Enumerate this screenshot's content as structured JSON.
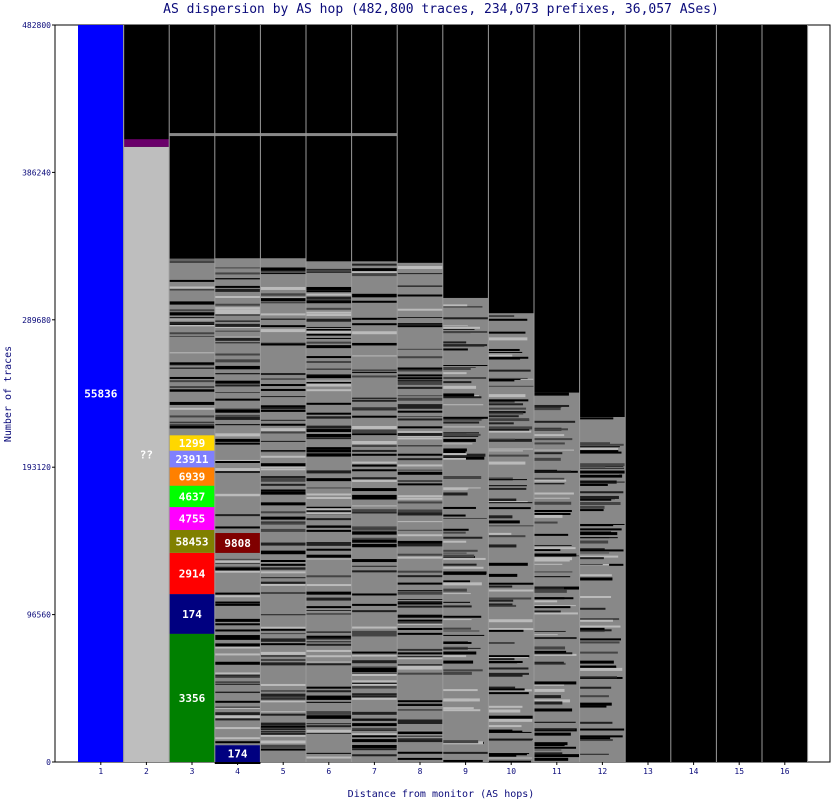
{
  "chart_data": {
    "type": "bar",
    "title": "AS dispersion by AS hop (482,800 traces, 234,073 prefixes, 36,057 ASes)",
    "xlabel": "Distance from monitor (AS hops)",
    "ylabel": "Number of traces",
    "ylim": [
      0,
      482800
    ],
    "y_ticks": [
      "0",
      "96560",
      "193120",
      "289680",
      "386240",
      "482800"
    ],
    "categories": [
      "1",
      "2",
      "3",
      "4",
      "5",
      "6",
      "7",
      "8",
      "9",
      "10",
      "11",
      "12",
      "13",
      "14",
      "15",
      "16"
    ],
    "gray_top": [
      0,
      0,
      330000,
      330000,
      330000,
      328000,
      328000,
      327000,
      304000,
      294000,
      242000,
      226000,
      0,
      0,
      0,
      0
    ],
    "named_segments": [
      {
        "hop": 1,
        "label": "55836",
        "from": 0,
        "to": 482800,
        "color": "#0000ff",
        "text_color": "#ffffff"
      },
      {
        "hop": 2,
        "label": "??",
        "from": 0,
        "to": 403000,
        "color": "#bebebe",
        "text_color": "#ffffff"
      },
      {
        "hop": 2,
        "label": "",
        "from": 403000,
        "to": 408000,
        "color": "#6a006a",
        "text_color": "#ffffff"
      },
      {
        "hop": 3,
        "label": "3356",
        "from": 0,
        "to": 84000,
        "color": "#008000",
        "text_color": "#ffffff"
      },
      {
        "hop": 3,
        "label": "174",
        "from": 84000,
        "to": 110000,
        "color": "#000080",
        "text_color": "#ffffff"
      },
      {
        "hop": 3,
        "label": "2914",
        "from": 110000,
        "to": 137000,
        "color": "#ff0000",
        "text_color": "#ffffff"
      },
      {
        "hop": 3,
        "label": "58453",
        "from": 137000,
        "to": 152000,
        "color": "#808000",
        "text_color": "#ffffff"
      },
      {
        "hop": 3,
        "label": "4755",
        "from": 152000,
        "to": 167000,
        "color": "#ff00ff",
        "text_color": "#ffffff"
      },
      {
        "hop": 3,
        "label": "4637",
        "from": 167000,
        "to": 181000,
        "color": "#00ff00",
        "text_color": "#ffffff"
      },
      {
        "hop": 3,
        "label": "6939",
        "from": 181000,
        "to": 193000,
        "color": "#ff8000",
        "text_color": "#ffffff"
      },
      {
        "hop": 3,
        "label": "23911",
        "from": 193000,
        "to": 204000,
        "color": "#8080ff",
        "text_color": "#ffffff"
      },
      {
        "hop": 3,
        "label": "1299",
        "from": 204000,
        "to": 214000,
        "color": "#ffd700",
        "text_color": "#ffffff"
      },
      {
        "hop": 4,
        "label": "174",
        "from": 0,
        "to": 11000,
        "color": "#000080",
        "text_color": "#ffffff"
      },
      {
        "hop": 4,
        "label": "9808",
        "from": 137000,
        "to": 150000,
        "color": "#800000",
        "text_color": "#ffffff"
      }
    ]
  }
}
